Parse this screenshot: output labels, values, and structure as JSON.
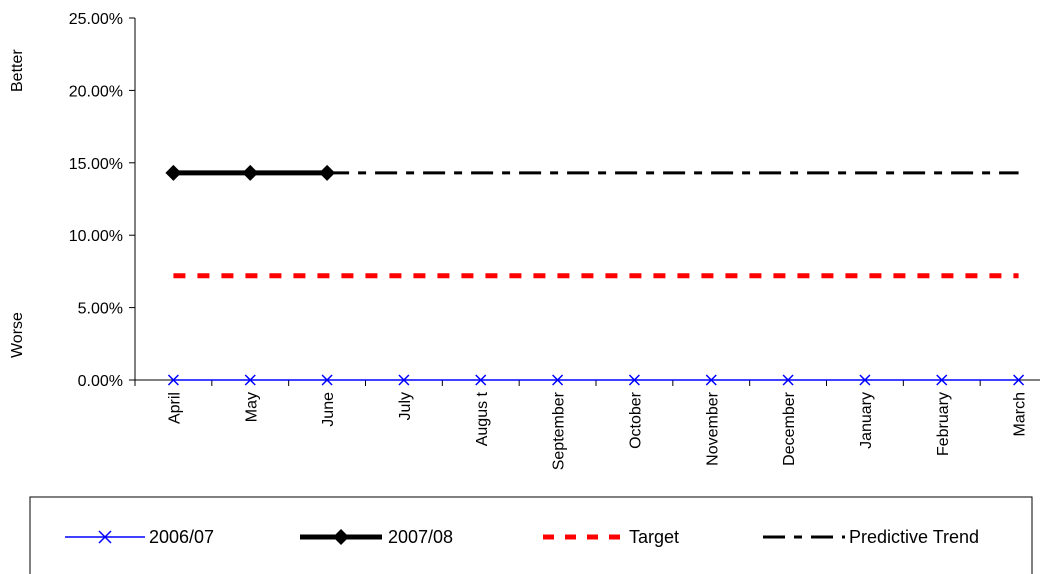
{
  "chart_data": {
    "type": "line",
    "categories": [
      "April",
      "May",
      "June",
      "July",
      "Augus t",
      "September",
      "October",
      "November",
      "December",
      "January",
      "February",
      "March"
    ],
    "ylim": [
      0,
      0.25
    ],
    "yticks": [
      "0.00%",
      "5.00%",
      "10.00%",
      "15.00%",
      "20.00%",
      "25.00%"
    ],
    "ylabel_top": "Better",
    "ylabel_bottom": "Worse",
    "grid": false,
    "legend_position": "bottom",
    "series": [
      {
        "name": "2006/07",
        "color": "#0000ff",
        "style": "solid-x-marker",
        "values": [
          0,
          0,
          0,
          0,
          0,
          0,
          0,
          0,
          0,
          0,
          0,
          0
        ]
      },
      {
        "name": "2007/08",
        "color": "#000000",
        "style": "thick-diamond-marker",
        "values": [
          0.143,
          0.143,
          0.143,
          null,
          null,
          null,
          null,
          null,
          null,
          null,
          null,
          null
        ]
      },
      {
        "name": "Target",
        "color": "#ff0000",
        "style": "thick-dashed",
        "values": [
          0.072,
          0.072,
          0.072,
          0.072,
          0.072,
          0.072,
          0.072,
          0.072,
          0.072,
          0.072,
          0.072,
          0.072
        ]
      },
      {
        "name": "Predictive Trend",
        "color": "#000000",
        "style": "dash-dot",
        "values": [
          null,
          null,
          0.143,
          0.143,
          0.143,
          0.143,
          0.143,
          0.143,
          0.143,
          0.143,
          0.143,
          0.143
        ]
      }
    ]
  }
}
